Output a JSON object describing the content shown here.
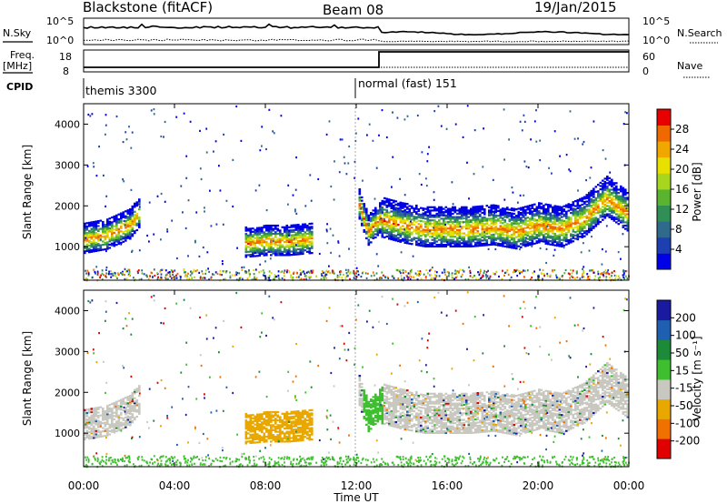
{
  "header": {
    "title": "Blackstone (fitACF)",
    "beam": "Beam 08",
    "date": "19/Jan/2015"
  },
  "top_panels": {
    "nsky_label": "N.Sky",
    "nsearch_label": "N.Search",
    "freq_label_1": "Freq.",
    "freq_label_2": "[MHz]",
    "nave_label": "Nave",
    "cpid_label": "CPID",
    "nsky_ticks": [
      "10^5",
      "10^0"
    ],
    "nsearch_ticks": [
      "10^5",
      "10^0"
    ],
    "freq_ticks": [
      "18",
      "8"
    ],
    "nave_ticks": [
      "60",
      "0"
    ],
    "cpid_segments": [
      {
        "label": "themis 3300",
        "start_hour": 0
      },
      {
        "label": "normal (fast) 151",
        "start_hour": 12
      }
    ]
  },
  "axes": {
    "xlabel": "Time UT",
    "ylabel": "Slant Range [km]",
    "x_ticks": [
      "00:00",
      "04:00",
      "08:00",
      "12:00",
      "16:00",
      "20:00",
      "00:00"
    ],
    "y_ticks": [
      "1000",
      "2000",
      "3000",
      "4000"
    ]
  },
  "colorbars": {
    "power": {
      "label": "Power [dB]",
      "ticks": [
        "28",
        "24",
        "20",
        "16",
        "12",
        "8",
        "4"
      ],
      "colors": [
        "#0000e6",
        "#1e3fb0",
        "#2f6a8c",
        "#2f8f55",
        "#5ab430",
        "#a8d620",
        "#e8e000",
        "#f0a800",
        "#f06800",
        "#e80000"
      ]
    },
    "velocity": {
      "label": "Velocity [m s⁻¹]",
      "ticks": [
        "200",
        "100",
        "50",
        "15",
        "-15",
        "-50",
        "-100",
        "-200"
      ],
      "colors": [
        "#1a1aa0",
        "#1e5fb0",
        "#1d8a3a",
        "#3fbf30",
        "#c8c8c0",
        "#e8a800",
        "#f07000",
        "#e00000"
      ]
    }
  },
  "chart_data": [
    {
      "type": "heatmap",
      "title": "Power",
      "xlabel": "Time UT",
      "ylabel": "Slant Range [km]",
      "xlim": [
        0,
        24
      ],
      "ylim": [
        180,
        4500
      ],
      "colorbar_label": "Power [dB]",
      "ridge": {
        "hours": [
          0,
          1,
          2,
          2.5,
          3,
          4,
          5,
          6,
          7,
          8,
          9,
          10,
          11,
          12,
          12.5,
          13,
          14,
          15,
          16,
          17,
          18,
          19,
          20,
          21,
          22,
          23,
          24
        ],
        "range_km": [
          1200,
          1300,
          1550,
          1900,
          null,
          null,
          null,
          null,
          1100,
          1150,
          1150,
          1200,
          null,
          2200,
          1400,
          1700,
          1550,
          1450,
          1450,
          1450,
          1500,
          1400,
          1550,
          1450,
          1700,
          2200,
          1800
        ]
      }
    },
    {
      "type": "heatmap",
      "title": "Velocity",
      "xlabel": "Time UT",
      "ylabel": "Slant Range [km]",
      "xlim": [
        0,
        24
      ],
      "ylim": [
        180,
        4500
      ],
      "colorbar_label": "Velocity [m s⁻¹]"
    }
  ]
}
